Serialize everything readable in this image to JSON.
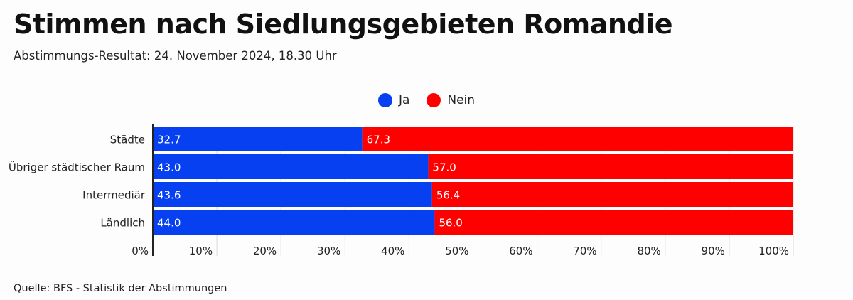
{
  "title": "Stimmen nach Siedlungsgebieten Romandie",
  "subtitle": "Abstimmungs-Resultat: 24. November 2024, 18.30 Uhr",
  "source": "Quelle: BFS - Statistik der Abstimmungen",
  "colors": {
    "ja": "#0640f0",
    "nein": "#ff0000",
    "grid": "#d9d9d9",
    "axis": "#222222"
  },
  "chart_data": {
    "type": "bar",
    "orientation": "horizontal",
    "stacked": true,
    "categories": [
      "Städte",
      "Übriger städtischer Raum",
      "Intermediär",
      "Ländlich"
    ],
    "series": [
      {
        "name": "Ja",
        "color": "#0640f0",
        "values": [
          32.7,
          43.0,
          43.6,
          44.0
        ]
      },
      {
        "name": "Nein",
        "color": "#ff0000",
        "values": [
          67.3,
          57.0,
          56.4,
          56.0
        ]
      }
    ],
    "xlim": [
      0,
      100
    ],
    "xticks": [
      "0%",
      "10%",
      "20%",
      "30%",
      "40%",
      "50%",
      "60%",
      "70%",
      "80%",
      "90%",
      "100%"
    ],
    "grid": true,
    "legend_position": "top-center"
  }
}
